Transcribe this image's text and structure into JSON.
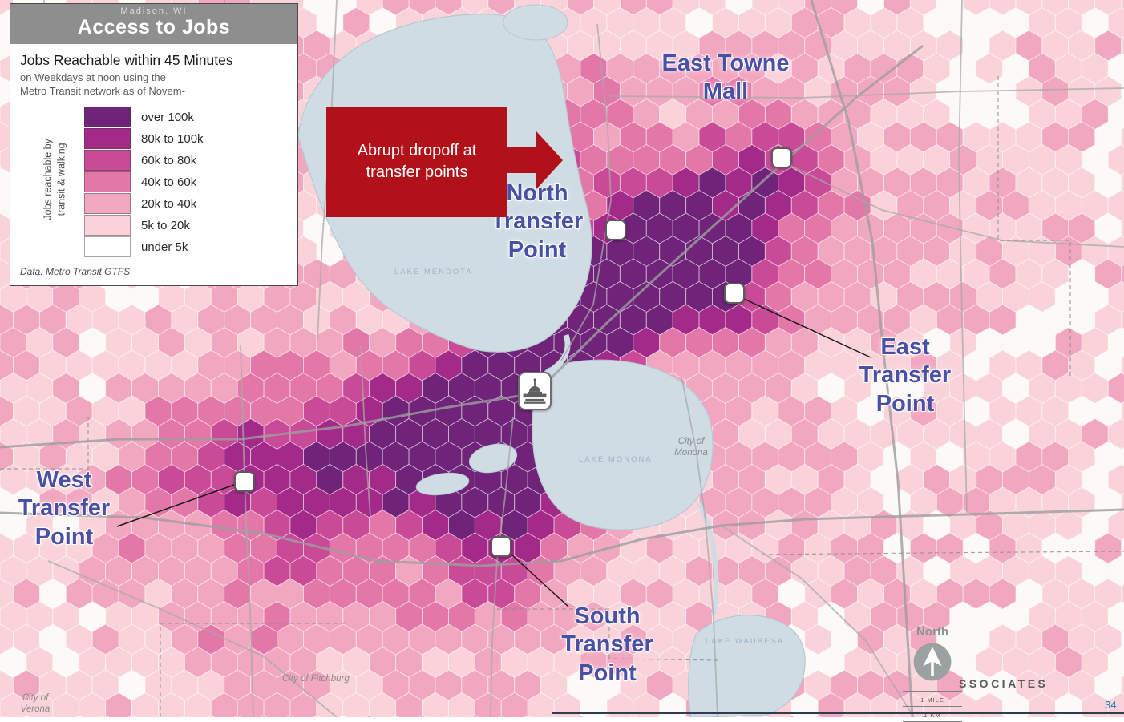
{
  "page": {
    "number": "34",
    "logo_text": "SSOCIATES"
  },
  "legend": {
    "location": "Madison, WI",
    "title": "Access to Jobs",
    "heading": "Jobs Reachable within 45 Minutes",
    "sub_line1": "on Weekdays at noon using the",
    "sub_line2": "Metro Transit network as of Novem-",
    "axis_line1": "Jobs reachable by",
    "axis_line2": "transit & walking",
    "source": "Data: Metro Transit GTFS",
    "items": [
      {
        "label": "over 100k",
        "color": "#6f2479"
      },
      {
        "label": "80k to 100k",
        "color": "#a42a8a"
      },
      {
        "label": "60k to 80k",
        "color": "#c94a97"
      },
      {
        "label": "40k to 60k",
        "color": "#e377a8"
      },
      {
        "label": "20k to 40k",
        "color": "#f2a7c0"
      },
      {
        "label": "5k to 20k",
        "color": "#fad3da"
      },
      {
        "label": "under 5k",
        "color": "#ffffff"
      }
    ]
  },
  "callout": {
    "line1": "Abrupt dropoff at",
    "line2": "transfer points",
    "color": "#b1121a"
  },
  "map": {
    "label_color": "#4a51a3",
    "water_color": "#cfdce4",
    "poi": {
      "east_towne": {
        "line1": "East Towne",
        "line2": "Mall"
      },
      "north_tp": {
        "line1": "North",
        "line2": "Transfer",
        "line3": "Point"
      },
      "east_tp": {
        "line1": "East",
        "line2": "Transfer",
        "line3": "Point"
      },
      "west_tp": {
        "line1": "West",
        "line2": "Transfer",
        "line3": "Point"
      },
      "south_tp": {
        "line1": "South",
        "line2": "Transfer",
        "line3": "Point"
      }
    },
    "cities": {
      "monona": {
        "line1": "City of",
        "line2": "Monona"
      },
      "fitchburg": {
        "line1": "City of Fitchburg"
      },
      "verona": {
        "line1": "City of",
        "line2": "Verona"
      }
    },
    "lakes": {
      "mendota": "LAKE MENDOTA",
      "monona": "LAKE MONONA",
      "waubesa": "LAKE WAUBESA"
    },
    "compass": {
      "label": "North"
    },
    "scale": {
      "mile": "1 MILE",
      "km": "1 KM"
    }
  }
}
